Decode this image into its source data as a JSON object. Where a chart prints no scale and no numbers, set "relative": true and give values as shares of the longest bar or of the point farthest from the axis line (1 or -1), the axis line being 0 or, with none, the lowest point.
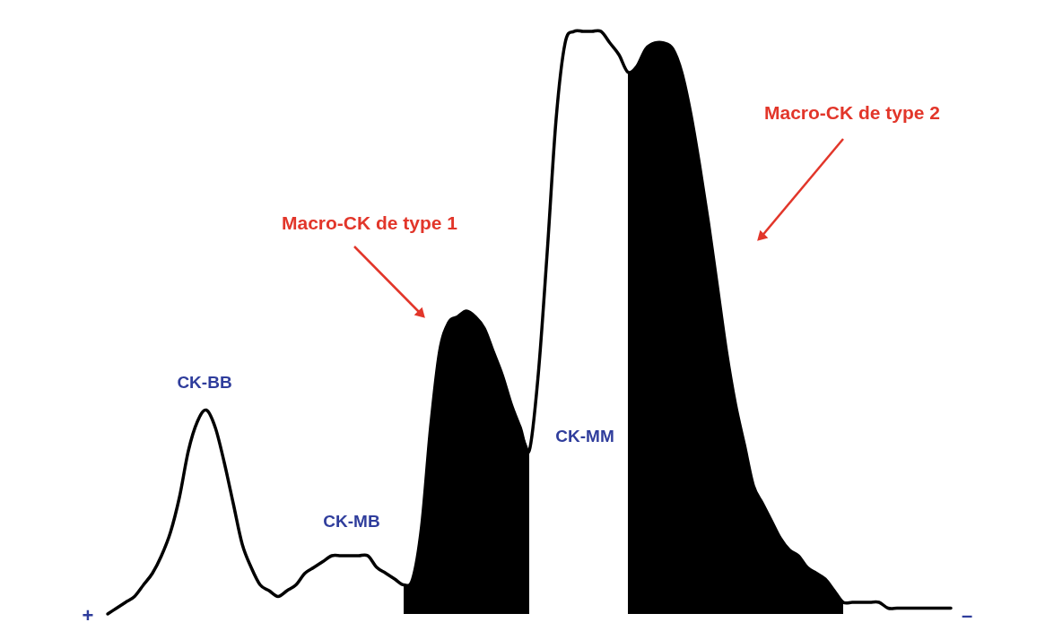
{
  "chart_data": {
    "type": "line",
    "relative": true,
    "categories": [
      null,
      null,
      null,
      null,
      null,
      null,
      null,
      null,
      null,
      null,
      null,
      null,
      null,
      null,
      null,
      null,
      null,
      null,
      null,
      null,
      null,
      null,
      null,
      null,
      null,
      null,
      null,
      null,
      null,
      null,
      null,
      null,
      null,
      null,
      null,
      null,
      null,
      null,
      null,
      null,
      null,
      null,
      null,
      null,
      null,
      null,
      null,
      null,
      null,
      null,
      null,
      null,
      null,
      null,
      null,
      null,
      null,
      null,
      null,
      null,
      null,
      null,
      null,
      null,
      null,
      null,
      null,
      null,
      null,
      null,
      null,
      null,
      null,
      null,
      null,
      null,
      null,
      null,
      null,
      null,
      null,
      null,
      null,
      null,
      null,
      null,
      null,
      null,
      null,
      null,
      null,
      null,
      null,
      null,
      null
    ],
    "series": [
      {
        "color": "#000000",
        "values": [
          0,
          0.01,
          0.02,
          0.03,
          0.05,
          0.07,
          0.1,
          0.14,
          0.2,
          0.28,
          0.33,
          0.35,
          0.32,
          0.26,
          0.19,
          0.12,
          0.08,
          0.05,
          0.04,
          0.03,
          0.04,
          0.05,
          0.07,
          0.08,
          0.09,
          0.1,
          0.1,
          0.1,
          0.1,
          0.1,
          0.08,
          0.07,
          0.06,
          0.05,
          0.06,
          0.15,
          0.32,
          0.45,
          0.5,
          0.51,
          0.52,
          0.51,
          0.49,
          0.45,
          0.41,
          0.36,
          0.32,
          0.28,
          0.41,
          0.62,
          0.85,
          0.98,
          1.0,
          1.0,
          1.0,
          1.0,
          0.98,
          0.96,
          0.93,
          0.94,
          0.97,
          0.98,
          0.98,
          0.97,
          0.93,
          0.86,
          0.77,
          0.67,
          0.56,
          0.45,
          0.36,
          0.29,
          0.22,
          0.19,
          0.16,
          0.13,
          0.11,
          0.1,
          0.08,
          0.07,
          0.06,
          0.04,
          0.02,
          0.02,
          0.02,
          0.02,
          0.02,
          0.01,
          0.01,
          0.01,
          0.01,
          0.01,
          0.01,
          0.01,
          0.01
        ]
      },
      {
        "type": "area",
        "color": "#000000",
        "values": [
          null,
          null,
          null,
          null,
          null,
          null,
          null,
          null,
          null,
          null,
          null,
          null,
          null,
          null,
          null,
          null,
          null,
          null,
          null,
          null,
          null,
          null,
          null,
          null,
          null,
          null,
          null,
          null,
          null,
          null,
          null,
          null,
          null,
          0.05,
          0.06,
          0.15,
          0.32,
          0.45,
          0.5,
          0.51,
          0.52,
          0.51,
          0.49,
          0.45,
          0.41,
          0.36,
          0.32,
          0.28,
          null,
          null,
          null,
          null,
          null,
          null,
          null,
          null,
          null,
          null,
          null,
          null,
          null,
          null,
          null,
          null,
          null,
          null,
          null,
          null,
          null,
          null,
          null,
          null,
          null,
          null,
          null,
          null,
          null,
          null,
          null,
          null,
          null,
          null,
          null,
          null,
          null,
          null,
          null,
          null,
          null,
          null,
          null,
          null,
          null,
          null,
          null
        ]
      },
      {
        "type": "area",
        "color": "#000000",
        "values": [
          null,
          null,
          null,
          null,
          null,
          null,
          null,
          null,
          null,
          null,
          null,
          null,
          null,
          null,
          null,
          null,
          null,
          null,
          null,
          null,
          null,
          null,
          null,
          null,
          null,
          null,
          null,
          null,
          null,
          null,
          null,
          null,
          null,
          null,
          null,
          null,
          null,
          null,
          null,
          null,
          null,
          null,
          null,
          null,
          null,
          null,
          null,
          null,
          null,
          null,
          null,
          null,
          null,
          null,
          null,
          null,
          null,
          null,
          0.93,
          0.94,
          0.97,
          0.98,
          0.98,
          0.97,
          0.93,
          0.86,
          0.77,
          0.67,
          0.56,
          0.45,
          0.36,
          0.29,
          0.22,
          0.19,
          0.16,
          0.13,
          0.11,
          0.1,
          0.08,
          0.07,
          0.06,
          0.04,
          0.02,
          null,
          null,
          null,
          null,
          null,
          null,
          null,
          null,
          null,
          null,
          null,
          null
        ]
      }
    ],
    "annotations": [
      "CK-BB",
      "CK-MB",
      "CK-MM",
      "Macro-CK de type 1",
      "Macro-CK de type 2",
      "+",
      "–"
    ]
  }
}
